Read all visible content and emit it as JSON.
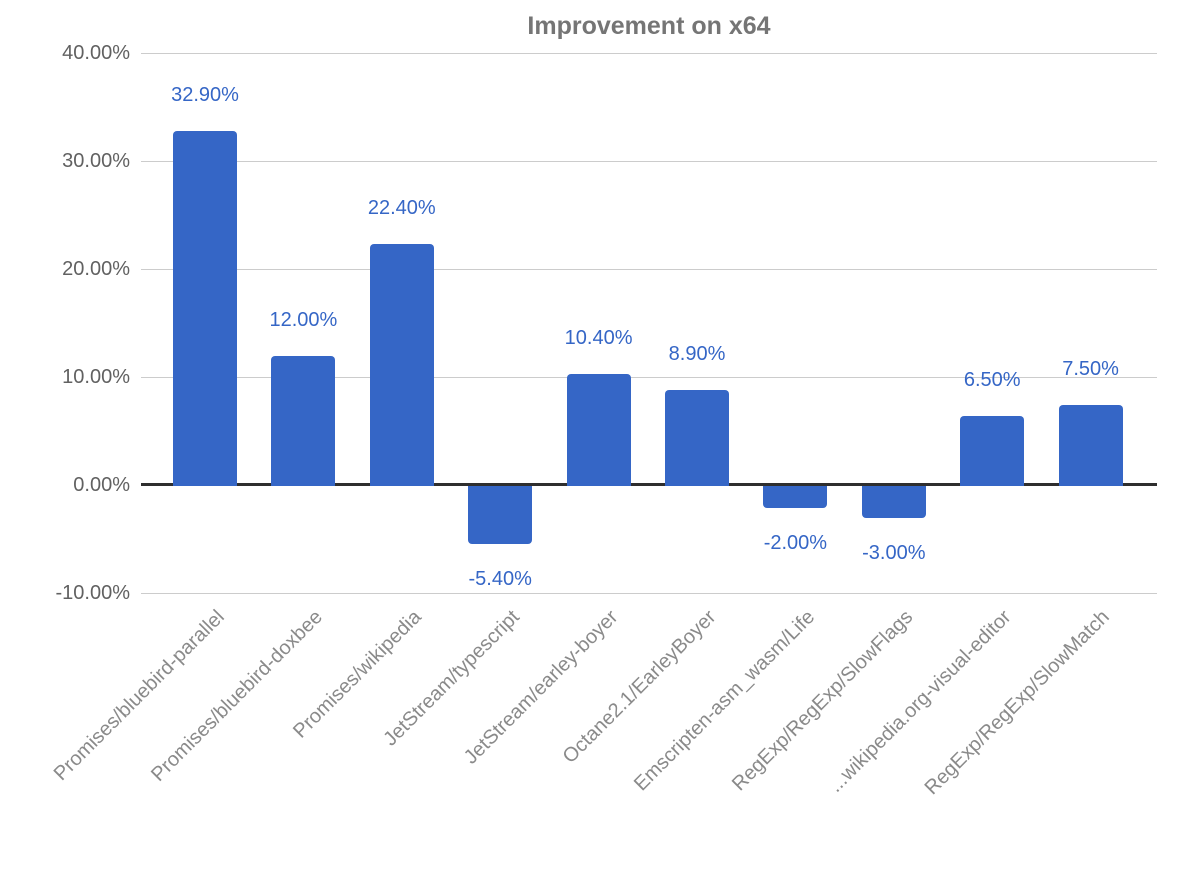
{
  "chart_data": {
    "type": "bar",
    "title": "Improvement on x64",
    "categories": [
      "Promises/bluebird-parallel",
      "Promises/bluebird-doxbee",
      "Promises/wikipedia",
      "JetStream/typescript",
      "JetStream/earley-boyer",
      "Octane2.1/EarleyBoyer",
      "Emscripten-asm_wasm/Life",
      "RegExp/RegExp/SlowFlags",
      "...wikipedia.org-visual-editor",
      "RegExp/RegExp/SlowMatch"
    ],
    "values": [
      32.9,
      12.0,
      22.4,
      -5.4,
      10.4,
      8.9,
      -2.0,
      -3.0,
      6.5,
      7.5
    ],
    "value_labels": [
      "32.90%",
      "12.00%",
      "22.40%",
      "-5.40%",
      "10.40%",
      "8.90%",
      "-2.00%",
      "-3.00%",
      "6.50%",
      "7.50%"
    ],
    "y_ticks": [
      {
        "label": "40.00%",
        "value": 40
      },
      {
        "label": "30.00%",
        "value": 30
      },
      {
        "label": "20.00%",
        "value": 20
      },
      {
        "label": "10.00%",
        "value": 10
      },
      {
        "label": "0.00%",
        "value": 0
      },
      {
        "label": "-10.00%",
        "value": -10
      }
    ],
    "ylim": [
      -10,
      40
    ],
    "grid": "on",
    "legend": "none",
    "xlabel": "",
    "ylabel": "",
    "colors": {
      "bar": "#3566c6",
      "value_label": "#3566c6",
      "gridline": "#cccccc",
      "zero_axis": "#2e2e2e",
      "title": "#757575",
      "y_tick_label": "#616161",
      "category_label": "#8a8a8a"
    }
  }
}
